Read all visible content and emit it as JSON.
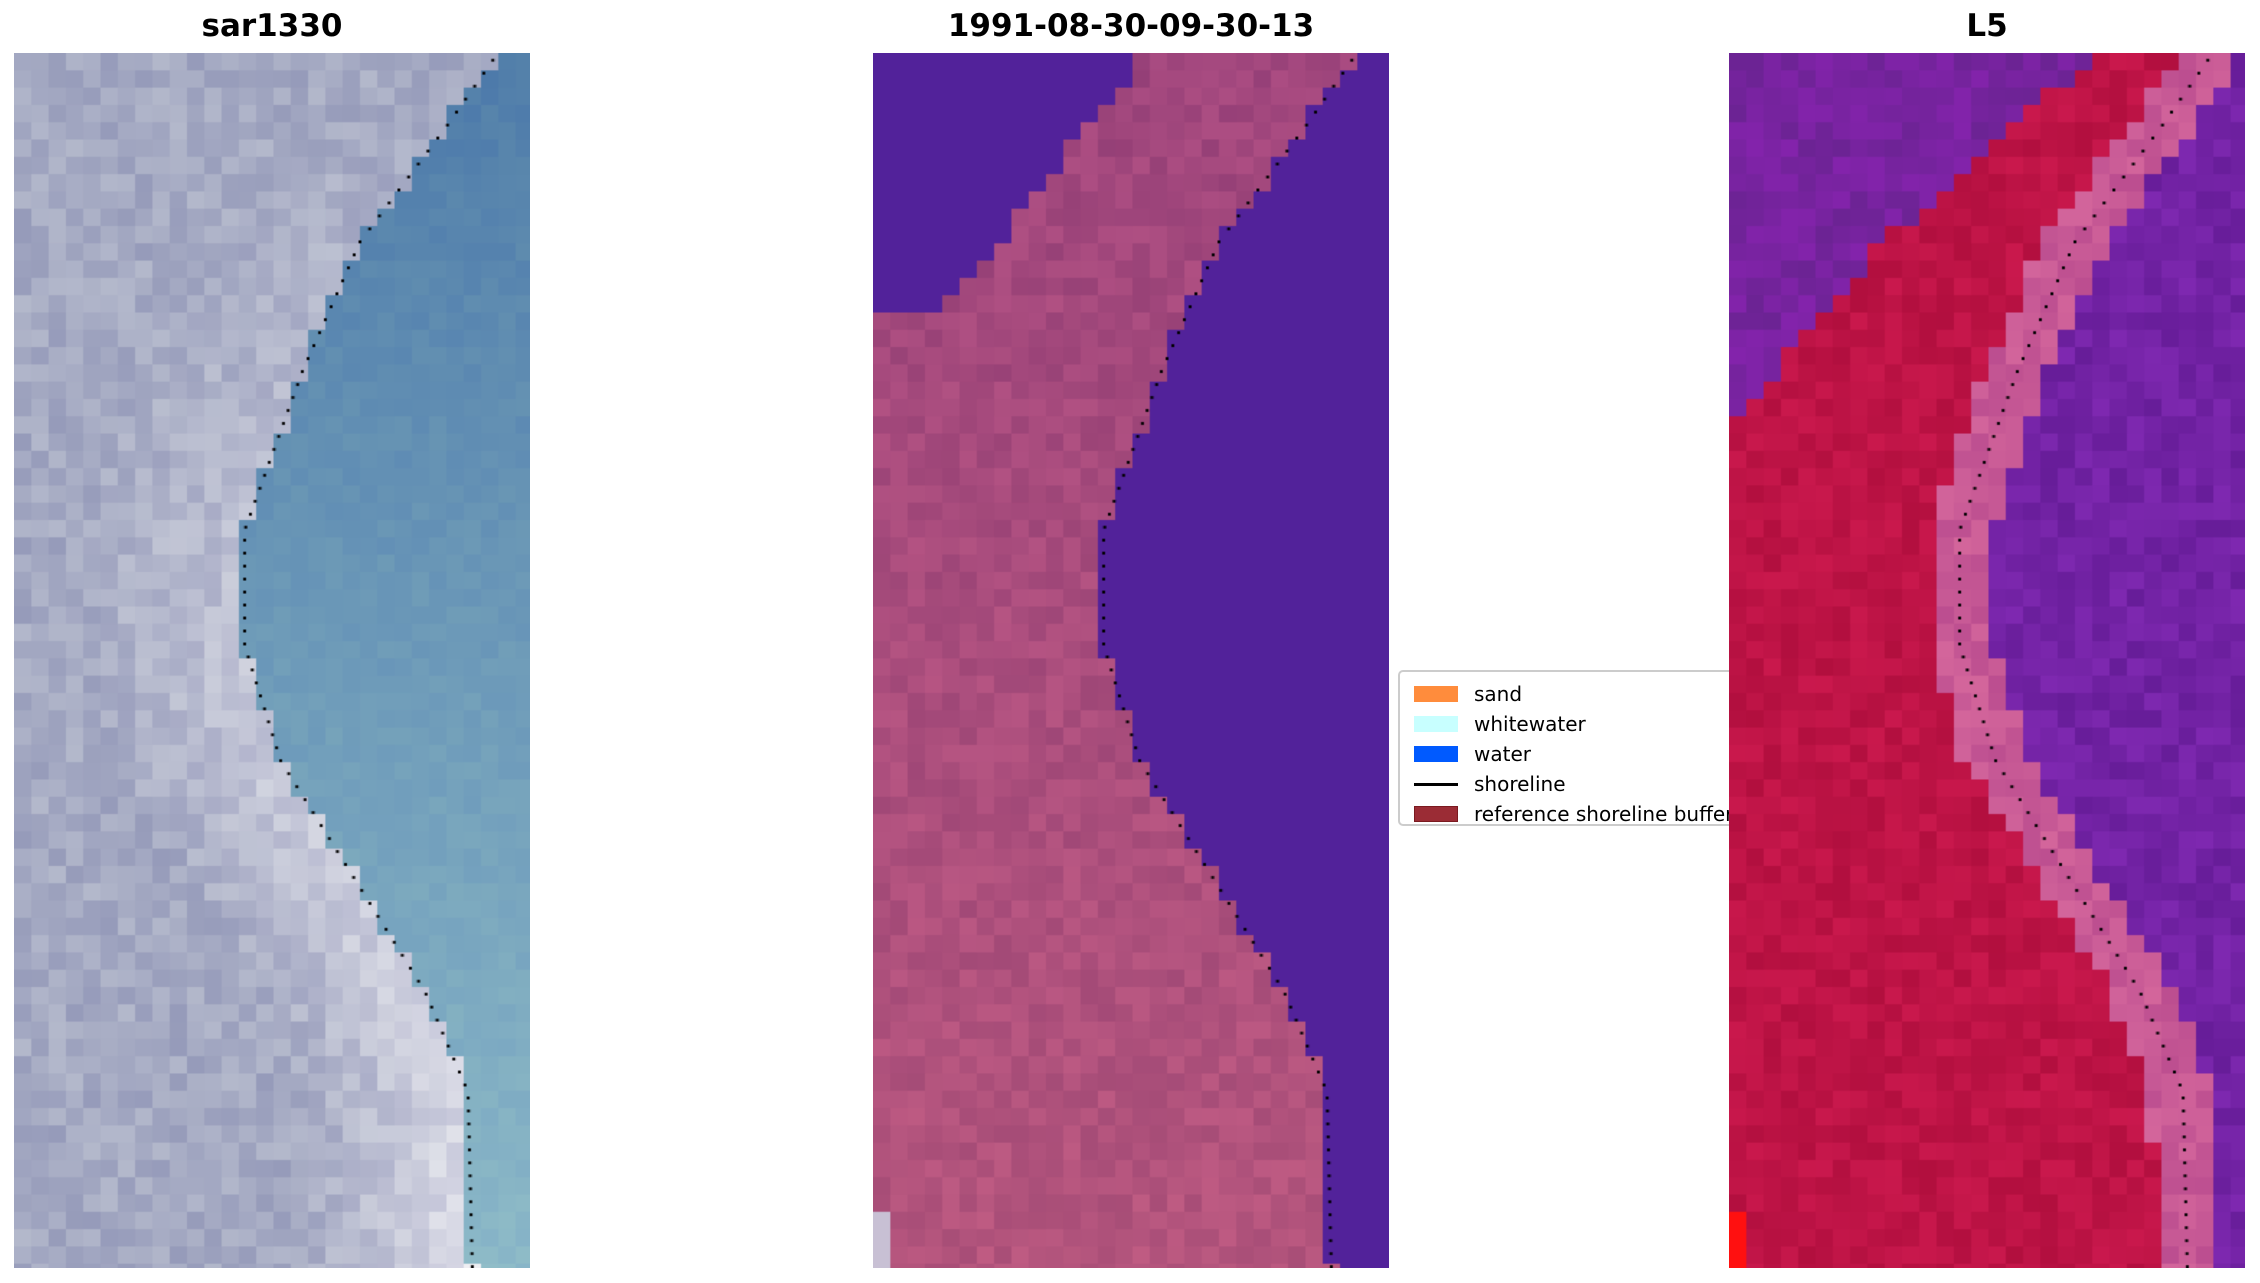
{
  "panels": [
    {
      "title": "sar1330",
      "kind": "rgb"
    },
    {
      "title": "1991-08-30-09-30-13",
      "kind": "classification"
    },
    {
      "title": "L5",
      "kind": "index"
    }
  ],
  "legend": {
    "items": [
      {
        "label": "sand",
        "color": "#ff8c3c",
        "type": "patch"
      },
      {
        "label": "whitewater",
        "color": "#c8ffff",
        "type": "patch"
      },
      {
        "label": "water",
        "color": "#005aff",
        "type": "patch"
      },
      {
        "label": "shoreline",
        "color": "#000000",
        "type": "line"
      },
      {
        "label": "reference shoreline buffer",
        "color": "#9b2c35",
        "type": "patch"
      }
    ]
  },
  "colors": {
    "water_class": "#52229a",
    "land_class": "#9a4a82",
    "index_water": "#7020a0",
    "index_land": "#c0103c"
  }
}
